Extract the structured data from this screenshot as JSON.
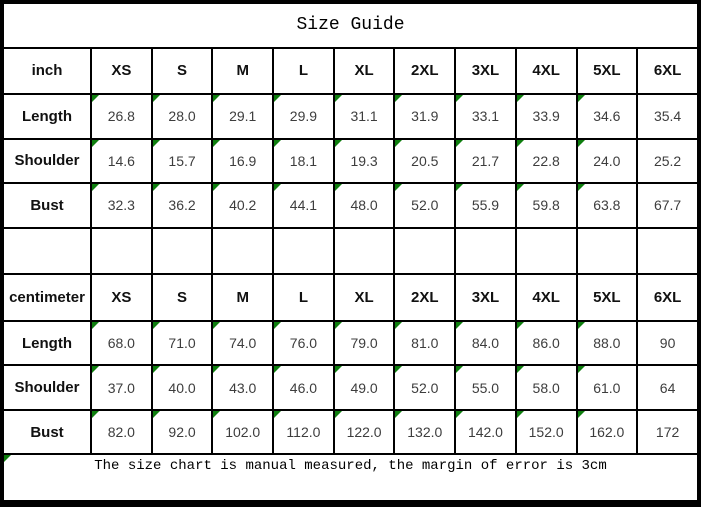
{
  "title": "Size Guide",
  "footer_note": "The size chart is manual measured, the margin of error is 3cm",
  "columns": [
    "XS",
    "S",
    "M",
    "L",
    "XL",
    "2XL",
    "3XL",
    "4XL",
    "5XL",
    "6XL"
  ],
  "colors": {
    "marker_green": "#0e7e0e",
    "border_black": "#000000",
    "value_text": "#3d3d3d",
    "label_text": "#111111",
    "background": "#ffffff"
  },
  "marker_icon": "comment-triangle-icon",
  "footer_has_marker": true,
  "sections": [
    {
      "unit_label": "inch",
      "rows": [
        {
          "label": "Length",
          "values": [
            "26.8",
            "28.0",
            "29.1",
            "29.9",
            "31.1",
            "31.9",
            "33.1",
            "33.9",
            "34.6",
            "35.4"
          ],
          "markers": [
            true,
            true,
            true,
            true,
            true,
            true,
            true,
            true,
            true,
            false
          ]
        },
        {
          "label": "Shoulder",
          "values": [
            "14.6",
            "15.7",
            "16.9",
            "18.1",
            "19.3",
            "20.5",
            "21.7",
            "22.8",
            "24.0",
            "25.2"
          ],
          "markers": [
            true,
            true,
            true,
            true,
            true,
            true,
            true,
            true,
            true,
            false
          ]
        },
        {
          "label": "Bust",
          "values": [
            "32.3",
            "36.2",
            "40.2",
            "44.1",
            "48.0",
            "52.0",
            "55.9",
            "59.8",
            "63.8",
            "67.7"
          ],
          "markers": [
            true,
            true,
            true,
            true,
            true,
            true,
            true,
            true,
            true,
            false
          ]
        }
      ]
    },
    {
      "unit_label": "centimeter",
      "rows": [
        {
          "label": "Length",
          "values": [
            "68.0",
            "71.0",
            "74.0",
            "76.0",
            "79.0",
            "81.0",
            "84.0",
            "86.0",
            "88.0",
            "90"
          ],
          "markers": [
            true,
            true,
            true,
            true,
            true,
            true,
            true,
            true,
            true,
            false
          ]
        },
        {
          "label": "Shoulder",
          "values": [
            "37.0",
            "40.0",
            "43.0",
            "46.0",
            "49.0",
            "52.0",
            "55.0",
            "58.0",
            "61.0",
            "64"
          ],
          "markers": [
            true,
            true,
            true,
            true,
            true,
            true,
            true,
            true,
            true,
            false
          ]
        },
        {
          "label": "Bust",
          "values": [
            "82.0",
            "92.0",
            "102.0",
            "112.0",
            "122.0",
            "132.0",
            "142.0",
            "152.0",
            "162.0",
            "172"
          ],
          "markers": [
            true,
            true,
            true,
            true,
            true,
            true,
            true,
            true,
            true,
            false
          ]
        }
      ]
    }
  ]
}
